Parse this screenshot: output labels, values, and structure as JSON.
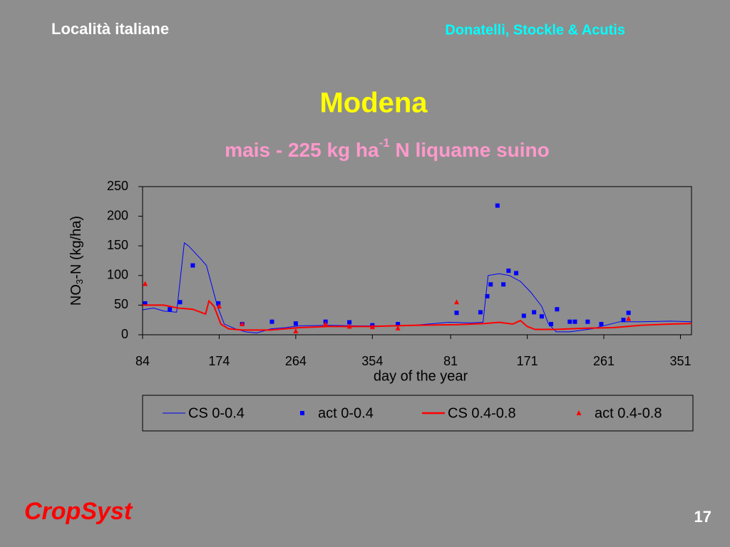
{
  "header": {
    "left": "Località italiane",
    "right": "Donatelli, Stockle & Acutis"
  },
  "footer": {
    "logo": "CropSyst",
    "page": "17"
  },
  "chart_data": {
    "type": "line",
    "title": "Modena",
    "subtitle": {
      "text": "mais - 225 kg ha",
      "sup": "-1",
      "rest": " N liquame suino"
    },
    "y_label": {
      "text": "NO",
      "sub": "3",
      "rest": "-N  (kg/ha)"
    },
    "x_label": "day  of  the  year",
    "xlim": [
      84,
      729
    ],
    "ylim": [
      0,
      250
    ],
    "yticks": [
      0,
      50,
      100,
      150,
      200,
      250
    ],
    "xticks": [
      84,
      174,
      264,
      354,
      {
        "value": 446,
        "label": "81"
      },
      {
        "value": 536,
        "label": "171"
      },
      {
        "value": 626,
        "label": "261"
      },
      {
        "value": 716,
        "label": "351"
      }
    ],
    "series": [
      {
        "name": "CS 0-0.4",
        "color": "#0000ff",
        "style": "line",
        "x": [
          84,
          97,
          109,
          124,
          133,
          138,
          151,
          159,
          165,
          172,
          180,
          193,
          205,
          218,
          235,
          252,
          268,
          302,
          335,
          369,
          402,
          444,
          469,
          484,
          490,
          503,
          515,
          528,
          540,
          553,
          561,
          570,
          586,
          612,
          628,
          645,
          670,
          704,
          729
        ],
        "values": [
          42,
          45,
          40,
          38,
          155,
          150,
          130,
          117,
          85,
          48,
          18,
          10,
          5,
          3,
          10,
          12,
          15,
          16,
          15,
          15,
          16,
          21,
          20,
          21,
          100,
          103,
          100,
          90,
          72,
          48,
          18,
          5,
          5,
          10,
          16,
          22,
          22,
          23,
          22
        ]
      },
      {
        "name": "act 0-0.4",
        "color": "#0000ff",
        "style": "square",
        "x": [
          87,
          116,
          128,
          143,
          173,
          201,
          236,
          264,
          299,
          327,
          354,
          384,
          453,
          481,
          489,
          493,
          501,
          508,
          514,
          523,
          532,
          544,
          553,
          564,
          571,
          586,
          592,
          607,
          623,
          649,
          655
        ],
        "values": [
          53,
          43,
          55,
          117,
          53,
          18,
          22,
          19,
          22,
          21,
          16,
          18,
          37,
          38,
          65,
          85,
          218,
          85,
          108,
          104,
          32,
          38,
          31,
          18,
          43,
          22,
          22,
          22,
          18,
          25,
          37
        ]
      },
      {
        "name": "CS 0.4-0.8",
        "color": "#ff0000",
        "style": "line",
        "x": [
          84,
          109,
          126,
          143,
          158,
          162,
          168,
          176,
          185,
          201,
          235,
          268,
          302,
          352,
          402,
          453,
          486,
          503,
          519,
          528,
          536,
          545,
          570,
          603,
          637,
          670,
          704,
          729
        ],
        "values": [
          50,
          50,
          45,
          43,
          35,
          57,
          48,
          18,
          10,
          8,
          8,
          12,
          14,
          14,
          16,
          17,
          19,
          21,
          18,
          24,
          14,
          9,
          9,
          11,
          12,
          16,
          18,
          19
        ]
      },
      {
        "name": "act 0.4-0.8",
        "color": "#ff0000",
        "style": "triangle",
        "x": [
          87,
          174,
          201,
          264,
          299,
          327,
          354,
          384,
          453,
          655
        ],
        "values": [
          86,
          48,
          18,
          6,
          18,
          14,
          13,
          11,
          55,
          27
        ]
      }
    ]
  }
}
